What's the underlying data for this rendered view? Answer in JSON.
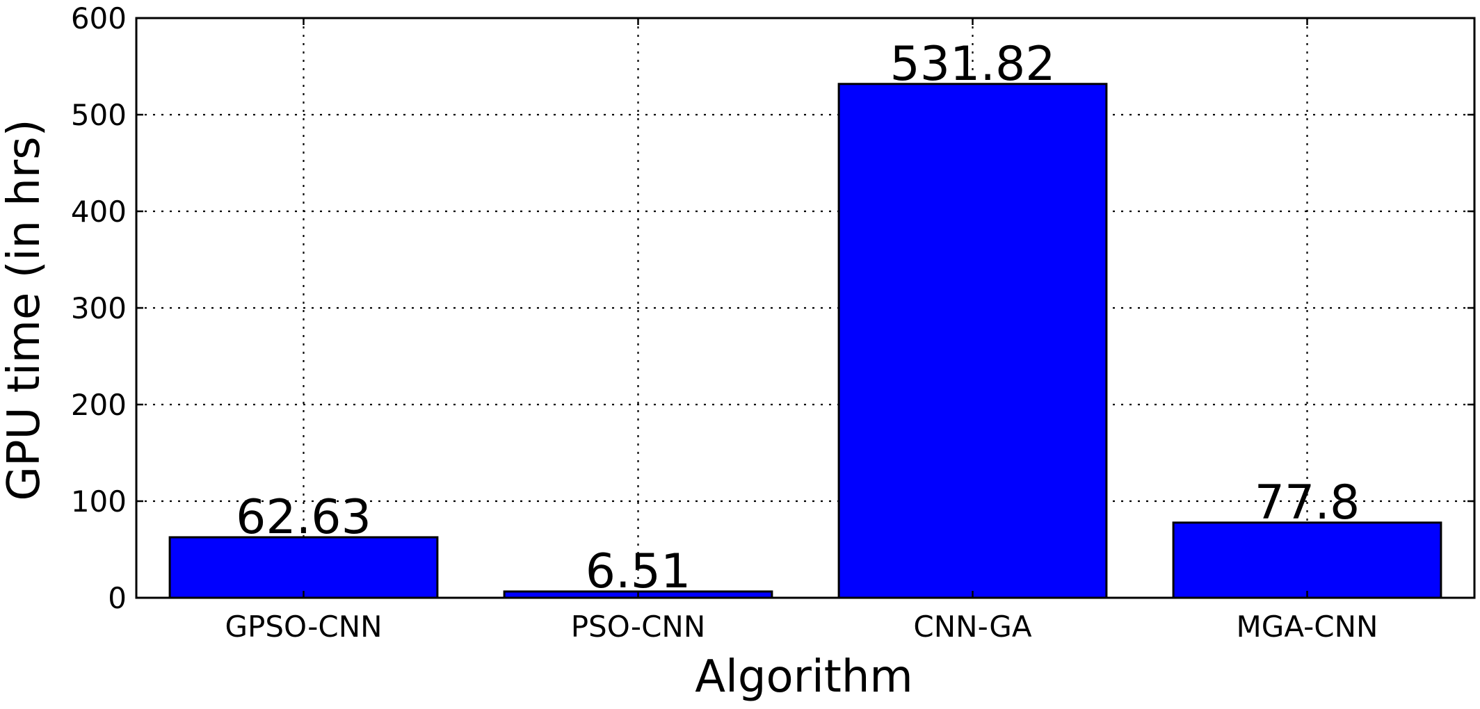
{
  "chart_data": {
    "type": "bar",
    "categories": [
      "GPSO-CNN",
      "PSO-CNN",
      "CNN-GA",
      "MGA-CNN"
    ],
    "values": [
      62.63,
      6.51,
      531.82,
      77.8
    ],
    "data_labels": [
      "62.63",
      "6.51",
      "531.82",
      "77.8"
    ],
    "xlabel": "Algorithm",
    "ylabel": "GPU time (in hrs)",
    "ylim": [
      0,
      600
    ],
    "yticks": [
      0,
      100,
      200,
      300,
      400,
      500,
      600
    ],
    "ytick_labels": [
      "0",
      "100",
      "200",
      "300",
      "400",
      "500",
      "600"
    ],
    "grid": true,
    "bar_color": "#0000ff"
  }
}
